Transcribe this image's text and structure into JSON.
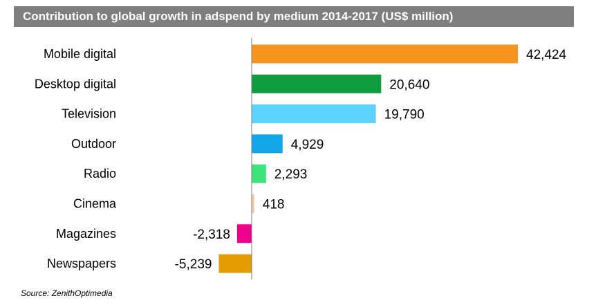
{
  "chart_data": {
    "type": "bar",
    "orientation": "horizontal",
    "title": "Contribution to global growth in adspend by medium 2014-2017 (US$ million)",
    "categories": [
      "Mobile digital",
      "Desktop digital",
      "Television",
      "Outdoor",
      "Radio",
      "Cinema",
      "Magazines",
      "Newspapers"
    ],
    "values": [
      42424,
      20640,
      19790,
      4929,
      2293,
      418,
      -2318,
      -5239
    ],
    "value_labels": [
      "42,424",
      "20,640",
      "19,790",
      "4,929",
      "2,293",
      "418",
      "-2,318",
      "-5,239"
    ],
    "colors": [
      "#f7941d",
      "#0f9d3f",
      "#5bd2ff",
      "#12a5e8",
      "#3ee37b",
      "#f6c9a5",
      "#ec008c",
      "#e59c00"
    ],
    "xlim": [
      -10000,
      44000
    ],
    "grid": false,
    "legend": false
  },
  "source": "Source: ZenithOptimedia"
}
